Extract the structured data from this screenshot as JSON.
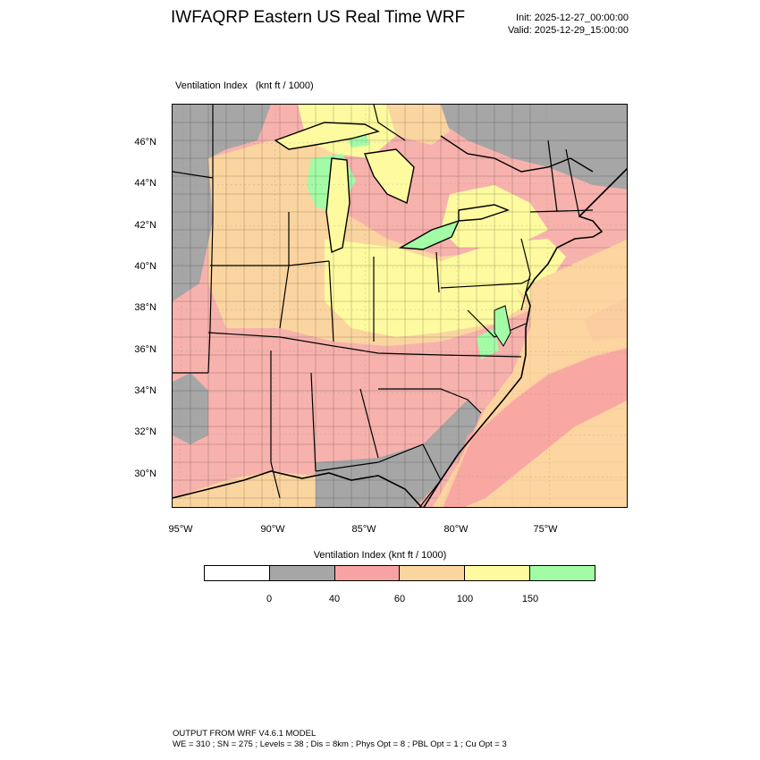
{
  "header": {
    "title": "IWFAQRP Eastern US Real Time WRF",
    "init": "Init: 2025-12-27_00:00:00",
    "valid": "Valid: 2025-12-29_15:00:00"
  },
  "map": {
    "subtitle": "Ventilation Index   (knt ft / 1000)",
    "lat_labels": [
      "46°N",
      "44°N",
      "42°N",
      "40°N",
      "38°N",
      "36°N",
      "34°N",
      "32°N",
      "30°N"
    ],
    "lon_labels": [
      "95°W",
      "90°W",
      "85°W",
      "80°W",
      "75°W"
    ]
  },
  "legend": {
    "title": "Ventilation Index  (knt ft / 1000)",
    "colors": [
      "#ffffff",
      "#a6a6a6",
      "#f7a3a3",
      "#fbd5a0",
      "#fdfaa0",
      "#a4fba6"
    ],
    "ticks": [
      "0",
      "40",
      "60",
      "100",
      "150"
    ]
  },
  "footer": {
    "line1": "OUTPUT FROM WRF V4.6.1 MODEL",
    "line2": "WE = 310 ; SN = 275 ; Levels = 38 ; Dis = 8km ; Phys Opt = 8 ; PBL Opt = 1 ; Cu Opt = 3"
  }
}
